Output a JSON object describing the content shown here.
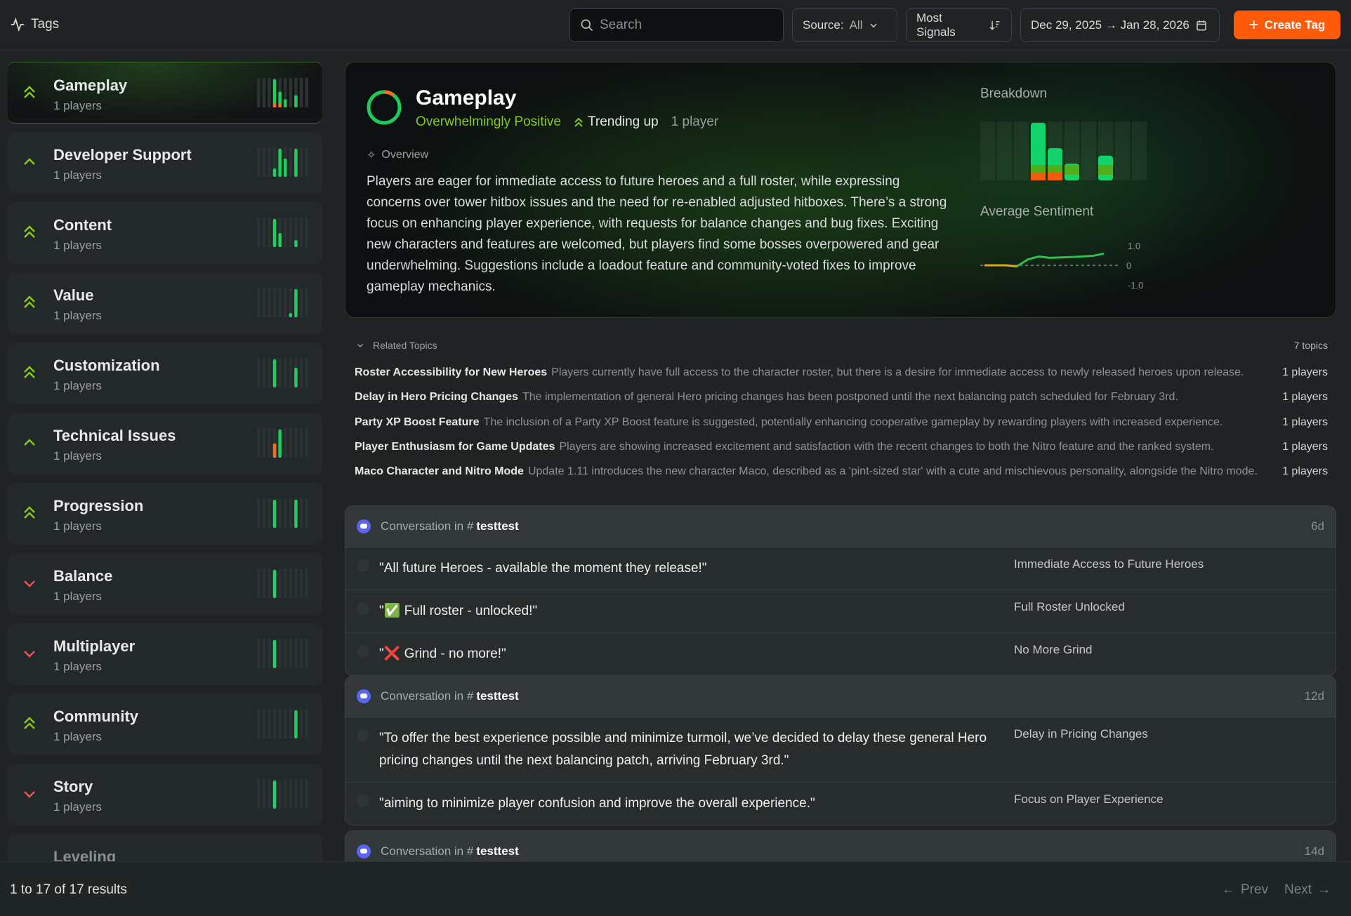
{
  "header": {
    "title": "Tags",
    "search_placeholder": "Search",
    "source_label": "Source:",
    "source_value": "All",
    "sort_label": "Most Signals",
    "date_range": "Dec 29, 2025 → Jan 28, 2026",
    "create_label": "Create Tag"
  },
  "colors": {
    "accent": "#ff5a0a",
    "positive": "#1fd36a",
    "lime": "#84cc16",
    "negative": "#f05252",
    "discord": "#5865f2"
  },
  "sidebar": {
    "items": [
      {
        "name": "Gameplay",
        "players": "1 players",
        "trend": "strong-up",
        "selected": true,
        "bars": [
          0,
          0,
          0,
          1,
          0.56,
          0.29,
          0,
          0.43,
          0,
          0
        ],
        "neg": [
          0,
          0,
          0,
          0.13,
          0.25,
          0,
          0,
          0,
          0,
          0
        ]
      },
      {
        "name": "Developer Support",
        "players": "1 players",
        "trend": "up",
        "bars": [
          0,
          0,
          0,
          0.3,
          1,
          0.65,
          0,
          1,
          0,
          0
        ],
        "neg": [
          0,
          0,
          0,
          0,
          0,
          0,
          0,
          0,
          0,
          0
        ]
      },
      {
        "name": "Content",
        "players": "1 players",
        "trend": "strong-up",
        "bars": [
          0,
          0,
          0,
          1,
          0.5,
          0,
          0,
          0.25,
          0,
          0
        ],
        "neg": [
          0,
          0,
          0,
          0,
          0,
          0,
          0,
          0,
          0,
          0
        ]
      },
      {
        "name": "Value",
        "players": "1 players",
        "trend": "strong-up",
        "bars": [
          0,
          0,
          0,
          0,
          0,
          0,
          0.15,
          1,
          0,
          0
        ],
        "neg": [
          0,
          0,
          0,
          0,
          0,
          0,
          0,
          0,
          0,
          0
        ]
      },
      {
        "name": "Customization",
        "players": "1 players",
        "trend": "strong-up",
        "bars": [
          0,
          0,
          0,
          1,
          0,
          0,
          0,
          0.7,
          0,
          0
        ],
        "neg": [
          0,
          0,
          0,
          0,
          0,
          0,
          0,
          0,
          0,
          0
        ]
      },
      {
        "name": "Technical Issues",
        "players": "1 players",
        "trend": "up",
        "bars": [
          0,
          0,
          0,
          0.5,
          1,
          0,
          0,
          0,
          0,
          0
        ],
        "neg": [
          0,
          0,
          0,
          1,
          0,
          0,
          0,
          0,
          0,
          0
        ]
      },
      {
        "name": "Progression",
        "players": "1 players",
        "trend": "strong-up",
        "bars": [
          0,
          0,
          0,
          1,
          0,
          0,
          0,
          1,
          0,
          0
        ],
        "neg": [
          0,
          0,
          0,
          0,
          0,
          0,
          0,
          0,
          0,
          0
        ]
      },
      {
        "name": "Balance",
        "players": "1 players",
        "trend": "down",
        "bars": [
          0,
          0,
          0,
          1,
          0,
          0,
          0,
          0,
          0,
          0
        ],
        "neg": [
          0,
          0,
          0,
          0,
          0,
          0,
          0,
          0,
          0,
          0
        ]
      },
      {
        "name": "Multiplayer",
        "players": "1 players",
        "trend": "down",
        "bars": [
          0,
          0,
          0,
          1,
          0,
          0,
          0,
          0,
          0,
          0
        ],
        "neg": [
          0,
          0,
          0,
          0,
          0,
          0,
          0,
          0,
          0,
          0
        ]
      },
      {
        "name": "Community",
        "players": "1 players",
        "trend": "strong-up",
        "bars": [
          0,
          0,
          0,
          0,
          0,
          0,
          0,
          1,
          0,
          0
        ],
        "neg": [
          0,
          0,
          0,
          0,
          0,
          0,
          0,
          0,
          0,
          0
        ]
      },
      {
        "name": "Story",
        "players": "1 players",
        "trend": "down",
        "bars": [
          0,
          0,
          0,
          1,
          0,
          0,
          0,
          0,
          0,
          0
        ],
        "neg": [
          0,
          0,
          0,
          0,
          0,
          0,
          0,
          0,
          0,
          0
        ]
      },
      {
        "name": "Leveling",
        "players": "",
        "trend": "",
        "bars": [],
        "neg": []
      }
    ]
  },
  "detail": {
    "title": "Gameplay",
    "sentiment": "Overwhelmingly Positive",
    "trend": "Trending up",
    "players": "1 player",
    "sentiment_ring_positive": 0.9,
    "overview_label": "Overview",
    "overview": "Players are eager for immediate access to future heroes and a full roster, while expressing concerns over tower hitbox issues and the need for re-enabled adjusted hitboxes. There’s a strong focus on enhancing player experience, with requests for balance changes and bug fixes. Exciting new characters and features are welcomed, but players find some bosses overpowered and gear underwhelming. Suggestions include a loadout feature and community-voted fixes to improve gameplay mechanics.",
    "breakdown_label": "Breakdown",
    "avg_sentiment_label": "Average Sentiment"
  },
  "chart_data": [
    {
      "type": "bar",
      "title": "Breakdown",
      "values": [
        0,
        0,
        0,
        1,
        0.56,
        0.29,
        0,
        0.43,
        0,
        0
      ],
      "negative_share": [
        0,
        0,
        0,
        0.13,
        0.25,
        0,
        0,
        0,
        0,
        0
      ]
    },
    {
      "type": "line",
      "title": "Average Sentiment",
      "yticks": [
        "1.0",
        "0",
        "-1.0"
      ],
      "ylim": [
        -1,
        1
      ],
      "values": [
        0,
        0,
        0,
        -0.05,
        0.3,
        0.45,
        0.38,
        0.4,
        0.42,
        0.45,
        0.48,
        0.6
      ]
    }
  ],
  "related": {
    "label": "Related Topics",
    "count": "7 topics",
    "items": [
      {
        "title": "Roster Accessibility for New Heroes",
        "desc": "Players currently have full access to the character roster, but there is a desire for immediate access to newly released heroes upon release.",
        "players": "1 players"
      },
      {
        "title": "Delay in Hero Pricing Changes",
        "desc": "The implementation of general Hero pricing changes has been postponed until the next balancing patch scheduled for February 3rd.",
        "players": "1 players"
      },
      {
        "title": "Party XP Boost Feature",
        "desc": "The inclusion of a Party XP Boost feature is suggested, potentially enhancing cooperative gameplay by rewarding players with increased experience.",
        "players": "1 players"
      },
      {
        "title": "Player Enthusiasm for Game Updates",
        "desc": "Players are showing increased excitement and satisfaction with the recent changes to both the Nitro feature and the ranked system.",
        "players": "1 players"
      },
      {
        "title": "Maco Character and Nitro Mode",
        "desc": "Update 1.11 introduces the new character Maco, described as a 'pint-sized star' with a cute and mischievous personality, alongside the Nitro mode.",
        "players": "1 players"
      }
    ]
  },
  "conversations": [
    {
      "prefix": "Conversation in #",
      "channel": "testtest",
      "age": "6d",
      "rows": [
        {
          "quote": "\"All future Heroes - available the moment they release!\"",
          "label": "Immediate Access to Future Heroes"
        },
        {
          "quote": "\"✅ Full roster - unlocked!\"",
          "label": "Full Roster Unlocked"
        },
        {
          "quote": "\"❌ Grind - no more!\"",
          "label": "No More Grind"
        }
      ]
    },
    {
      "prefix": "Conversation in #",
      "channel": "testtest",
      "age": "12d",
      "rows": [
        {
          "quote": "\"To offer the best experience possible and minimize turmoil, we’ve decided to delay these general Hero pricing changes until the next balancing patch, arriving February 3rd.\"",
          "label": "Delay in Pricing Changes"
        },
        {
          "quote": "\"aiming to minimize player confusion and improve the overall experience.\"",
          "label": "Focus on Player Experience"
        }
      ]
    },
    {
      "prefix": "Conversation in #",
      "channel": "testtest",
      "age": "14d",
      "rows": []
    }
  ],
  "footer": {
    "results": "1 to 17 of 17 results",
    "prev": "Prev",
    "next": "Next"
  }
}
